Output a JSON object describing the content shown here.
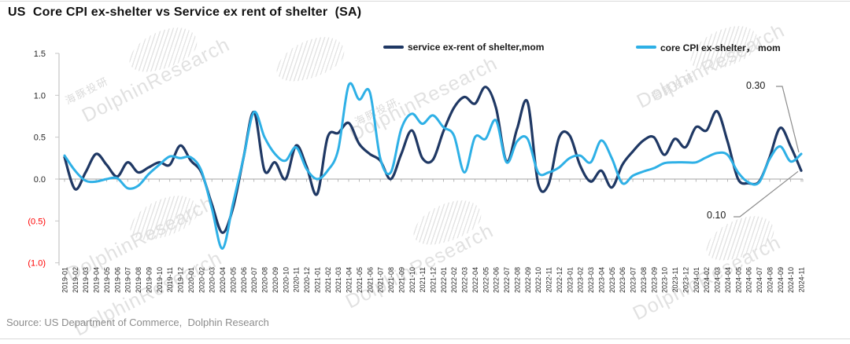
{
  "header": {
    "title": "US  Core CPI ex-shelter vs Service ex rent of shelter  (SA)"
  },
  "legend": [
    {
      "label": "service ex-rent of shelter,mom",
      "color": "#1f3864"
    },
    {
      "label": "core CPI ex-shelter， mom",
      "color": "#2eb0e6"
    }
  ],
  "annotations": [
    {
      "text": "0.30",
      "points_to": "core CPI ex-shelter 2024-11"
    },
    {
      "text": "0.10",
      "points_to": "service ex-rent of shelter 2024-11"
    }
  ],
  "watermark": {
    "text": "DolphinResearch",
    "cn": "海豚投研"
  },
  "source": "Source: US Department of Commerce,  Dolphin Research",
  "chart_data": {
    "type": "line",
    "title": "US Core CPI ex-shelter vs Service ex rent of shelter (SA)",
    "xlabel": "",
    "ylabel": "",
    "ylim": [
      -1.0,
      1.5
    ],
    "grid": false,
    "legend_position": "top",
    "ytick_values": [
      1.5,
      1.0,
      0.5,
      0.0,
      -0.5,
      -1.0
    ],
    "ytick_labels": [
      "1.5",
      "1.0",
      "0.5",
      "0.0",
      "(0.5)",
      "(1.0)"
    ],
    "ytick_negative_color": "#ff0000",
    "x": [
      "2019-01",
      "2019-02",
      "2019-03",
      "2019-04",
      "2019-05",
      "2019-06",
      "2019-07",
      "2019-08",
      "2019-09",
      "2019-10",
      "2019-11",
      "2019-12",
      "2020-01",
      "2020-02",
      "2020-03",
      "2020-04",
      "2020-05",
      "2020-06",
      "2020-07",
      "2020-08",
      "2020-09",
      "2020-10",
      "2020-11",
      "2020-12",
      "2021-01",
      "2021-02",
      "2021-03",
      "2021-04",
      "2021-05",
      "2021-06",
      "2021-07",
      "2021-08",
      "2021-09",
      "2021-10",
      "2021-11",
      "2021-12",
      "2022-01",
      "2022-02",
      "2022-03",
      "2022-04",
      "2022-05",
      "2022-06",
      "2022-07",
      "2022-08",
      "2022-09",
      "2022-10",
      "2022-11",
      "2022-12",
      "2023-01",
      "2023-02",
      "2023-03",
      "2023-04",
      "2023-05",
      "2023-06",
      "2023-07",
      "2023-08",
      "2023-09",
      "2023-10",
      "2023-11",
      "2023-12",
      "2024-01",
      "2024-02",
      "2024-03",
      "2024-04",
      "2024-05",
      "2024-06",
      "2024-07",
      "2024-08",
      "2024-09",
      "2024-10",
      "2024-11"
    ],
    "series": [
      {
        "name": "service ex-rent of shelter,mom",
        "color": "#1f3864",
        "values": [
          0.26,
          -0.12,
          0.08,
          0.3,
          0.17,
          0.03,
          0.2,
          0.08,
          0.14,
          0.2,
          0.17,
          0.4,
          0.22,
          0.08,
          -0.3,
          -0.64,
          -0.35,
          0.25,
          0.8,
          0.1,
          0.2,
          0.0,
          0.4,
          0.15,
          -0.18,
          0.5,
          0.55,
          0.67,
          0.42,
          0.3,
          0.22,
          0.0,
          0.3,
          0.58,
          0.25,
          0.23,
          0.57,
          0.85,
          0.98,
          0.9,
          1.1,
          0.85,
          0.21,
          0.6,
          0.92,
          -0.05,
          -0.06,
          0.5,
          0.52,
          0.16,
          -0.03,
          0.1,
          -0.1,
          0.17,
          0.33,
          0.46,
          0.5,
          0.29,
          0.48,
          0.38,
          0.62,
          0.58,
          0.81,
          0.45,
          0.0,
          -0.05,
          -0.03,
          0.26,
          0.61,
          0.39,
          0.1
        ]
      },
      {
        "name": "core CPI ex-shelter， mom",
        "color": "#2eb0e6",
        "values": [
          0.28,
          0.1,
          -0.02,
          -0.03,
          0.0,
          0.01,
          -0.11,
          -0.08,
          0.06,
          0.17,
          0.27,
          0.25,
          0.26,
          0.1,
          -0.35,
          -0.83,
          -0.3,
          0.25,
          0.8,
          0.5,
          0.3,
          0.22,
          0.38,
          0.12,
          0.0,
          0.1,
          0.35,
          1.12,
          0.95,
          1.04,
          0.25,
          0.08,
          0.6,
          0.78,
          0.66,
          0.76,
          0.62,
          0.52,
          0.08,
          0.5,
          0.48,
          0.7,
          0.2,
          0.45,
          0.48,
          0.08,
          0.08,
          0.14,
          0.25,
          0.28,
          0.2,
          0.46,
          0.25,
          -0.05,
          0.04,
          0.09,
          0.13,
          0.19,
          0.2,
          0.2,
          0.2,
          0.26,
          0.31,
          0.29,
          0.08,
          -0.04,
          -0.04,
          0.24,
          0.39,
          0.21,
          0.3
        ]
      }
    ],
    "endpoint_labels": [
      {
        "series": "core CPI ex-shelter， mom",
        "x": "2024-11",
        "label": "0.30"
      },
      {
        "series": "service ex-rent of shelter,mom",
        "x": "2024-11",
        "label": "0.10"
      }
    ]
  }
}
